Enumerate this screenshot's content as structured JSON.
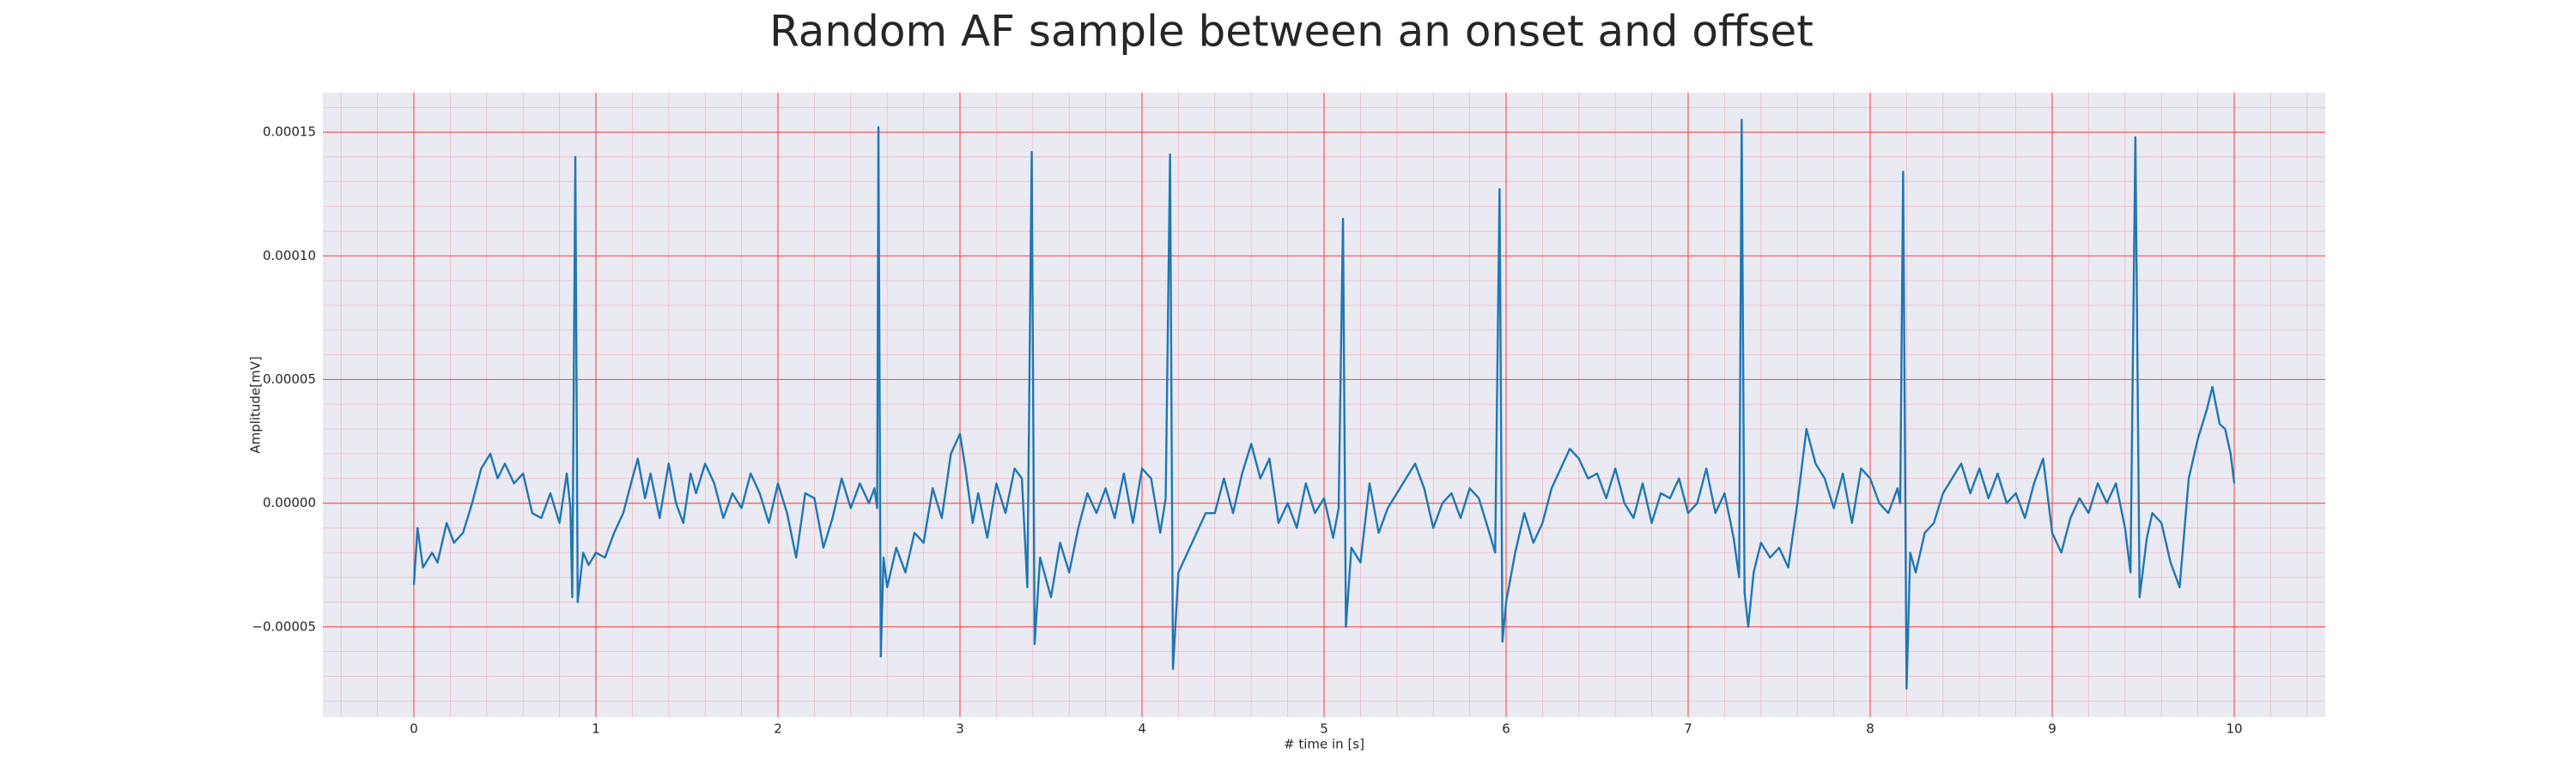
{
  "chart_data": {
    "type": "line",
    "title": "Random AF sample between an onset and offset",
    "x_label": "# time in [s]",
    "y_label": "Amplitude[mV]",
    "color": "#1f77b4",
    "grid": true,
    "minor_grid": true,
    "xlim": [
      -0.5,
      10.5
    ],
    "ylim": [
      -8.65e-05,
      0.000166
    ],
    "xticks": [
      0,
      1,
      2,
      3,
      4,
      5,
      6,
      7,
      8,
      9,
      10
    ],
    "yticks": [
      {
        "value": -5e-05,
        "label": "−0.00005"
      },
      {
        "value": 0,
        "label": "0.00000"
      },
      {
        "value": 5e-05,
        "label": "0.00005"
      },
      {
        "value": 0.0001,
        "label": "0.00010"
      },
      {
        "value": 0.00015,
        "label": "0.00015"
      }
    ],
    "x": [
      0,
      0.02,
      0.05,
      0.1,
      0.13,
      0.18,
      0.22,
      0.27,
      0.32,
      0.37,
      0.42,
      0.46,
      0.5,
      0.55,
      0.6,
      0.65,
      0.7,
      0.75,
      0.8,
      0.84,
      0.86,
      0.87,
      0.887,
      0.9,
      0.93,
      0.96,
      1.0,
      1.05,
      1.1,
      1.15,
      1.2,
      1.23,
      1.27,
      1.3,
      1.35,
      1.4,
      1.44,
      1.48,
      1.52,
      1.55,
      1.6,
      1.65,
      1.7,
      1.75,
      1.8,
      1.85,
      1.9,
      1.95,
      2.0,
      2.05,
      2.1,
      2.15,
      2.2,
      2.25,
      2.3,
      2.35,
      2.4,
      2.45,
      2.5,
      2.53,
      2.545,
      2.552,
      2.565,
      2.58,
      2.6,
      2.65,
      2.7,
      2.75,
      2.8,
      2.85,
      2.9,
      2.95,
      3.0,
      3.03,
      3.07,
      3.1,
      3.15,
      3.2,
      3.25,
      3.3,
      3.34,
      3.37,
      3.394,
      3.41,
      3.44,
      3.5,
      3.55,
      3.6,
      3.65,
      3.7,
      3.75,
      3.8,
      3.85,
      3.9,
      3.95,
      4.0,
      4.05,
      4.1,
      4.13,
      4.154,
      4.17,
      4.2,
      4.25,
      4.3,
      4.35,
      4.4,
      4.45,
      4.5,
      4.55,
      4.6,
      4.65,
      4.7,
      4.75,
      4.8,
      4.85,
      4.9,
      4.95,
      5.0,
      5.05,
      5.08,
      5.104,
      5.12,
      5.15,
      5.2,
      5.25,
      5.3,
      5.35,
      5.4,
      5.45,
      5.5,
      5.55,
      5.6,
      5.65,
      5.7,
      5.75,
      5.8,
      5.85,
      5.9,
      5.94,
      5.964,
      5.98,
      6.0,
      6.05,
      6.1,
      6.15,
      6.2,
      6.25,
      6.3,
      6.35,
      6.4,
      6.45,
      6.5,
      6.55,
      6.6,
      6.65,
      6.7,
      6.75,
      6.8,
      6.85,
      6.9,
      6.95,
      7.0,
      7.05,
      7.1,
      7.15,
      7.2,
      7.25,
      7.28,
      7.294,
      7.31,
      7.33,
      7.36,
      7.4,
      7.45,
      7.5,
      7.55,
      7.6,
      7.65,
      7.7,
      7.75,
      7.8,
      7.85,
      7.9,
      7.95,
      8.0,
      8.05,
      8.1,
      8.15,
      8.165,
      8.181,
      8.2,
      8.22,
      8.25,
      8.3,
      8.35,
      8.4,
      8.45,
      8.5,
      8.55,
      8.6,
      8.65,
      8.7,
      8.75,
      8.8,
      8.85,
      8.9,
      8.95,
      9.0,
      9.05,
      9.1,
      9.15,
      9.2,
      9.25,
      9.3,
      9.35,
      9.4,
      9.43,
      9.457,
      9.48,
      9.52,
      9.55,
      9.6,
      9.65,
      9.7,
      9.75,
      9.8,
      9.85,
      9.88,
      9.92,
      9.95,
      9.98,
      10.0
    ],
    "values": [
      -3.3e-05,
      -1e-05,
      -2.6e-05,
      -2e-05,
      -2.4e-05,
      -8e-06,
      -1.6e-05,
      -1.2e-05,
      0,
      1.4e-05,
      2e-05,
      1e-05,
      1.6e-05,
      8e-06,
      1.2e-05,
      -4e-06,
      -6e-06,
      4e-06,
      -8e-06,
      1.2e-05,
      -2e-06,
      -3.8e-05,
      0.00014,
      -4e-05,
      -2e-05,
      -2.5e-05,
      -2e-05,
      -2.2e-05,
      -1.2e-05,
      -4e-06,
      1e-05,
      1.8e-05,
      2e-06,
      1.2e-05,
      -6e-06,
      1.6e-05,
      0,
      -8e-06,
      1.2e-05,
      4e-06,
      1.6e-05,
      8e-06,
      -6e-06,
      4e-06,
      -2e-06,
      1.2e-05,
      4e-06,
      -8e-06,
      8e-06,
      -4e-06,
      -2.2e-05,
      4e-06,
      2e-06,
      -1.8e-05,
      -6e-06,
      1e-05,
      -2e-06,
      8e-06,
      0,
      6e-06,
      -2e-06,
      0.000152,
      -6.2e-05,
      -2.2e-05,
      -3.4e-05,
      -1.8e-05,
      -2.8e-05,
      -1.2e-05,
      -1.6e-05,
      6e-06,
      -6e-06,
      2e-05,
      2.8e-05,
      1.4e-05,
      -8e-06,
      4e-06,
      -1.4e-05,
      8e-06,
      -4e-06,
      1.4e-05,
      1e-05,
      -3.4e-05,
      0.000142,
      -5.7e-05,
      -2.2e-05,
      -3.8e-05,
      -1.6e-05,
      -2.8e-05,
      -1e-05,
      4e-06,
      -4e-06,
      6e-06,
      -6e-06,
      1.2e-05,
      -8e-06,
      1.4e-05,
      1e-05,
      -1.2e-05,
      2e-06,
      0.000141,
      -6.7e-05,
      -2.8e-05,
      -2e-05,
      -1.2e-05,
      -4e-06,
      -4e-06,
      1e-05,
      -4e-06,
      1.2e-05,
      2.4e-05,
      1e-05,
      1.8e-05,
      -8e-06,
      0,
      -1e-05,
      8e-06,
      -4e-06,
      2e-06,
      -1.4e-05,
      -2e-06,
      0.000115,
      -5e-05,
      -1.8e-05,
      -2.4e-05,
      8e-06,
      -1.2e-05,
      -2e-06,
      4e-06,
      1e-05,
      1.6e-05,
      6e-06,
      -1e-05,
      0,
      4e-06,
      -6e-06,
      6e-06,
      2e-06,
      -1e-05,
      -2e-05,
      0.000127,
      -5.6e-05,
      -4e-05,
      -2e-05,
      -4e-06,
      -1.6e-05,
      -8e-06,
      6e-06,
      1.4e-05,
      2.2e-05,
      1.8e-05,
      1e-05,
      1.2e-05,
      2e-06,
      1.4e-05,
      0,
      -6e-06,
      8e-06,
      -8e-06,
      4e-06,
      2e-06,
      1e-05,
      -4e-06,
      0,
      1.4e-05,
      -4e-06,
      4e-06,
      -1.4e-05,
      -3e-05,
      0.000155,
      -3.6e-05,
      -5e-05,
      -2.8e-05,
      -1.6e-05,
      -2.2e-05,
      -1.8e-05,
      -2.6e-05,
      0,
      3e-05,
      1.6e-05,
      1e-05,
      -2e-06,
      1.2e-05,
      -8e-06,
      1.4e-05,
      1e-05,
      0,
      -4e-06,
      6e-06,
      0,
      0.000134,
      -7.5e-05,
      -2e-05,
      -2.8e-05,
      -1.2e-05,
      -8e-06,
      4e-06,
      1e-05,
      1.6e-05,
      4e-06,
      1.4e-05,
      2e-06,
      1.2e-05,
      0,
      4e-06,
      -6e-06,
      8e-06,
      1.8e-05,
      -1.2e-05,
      -2e-05,
      -6e-06,
      2e-06,
      -4e-06,
      8e-06,
      0,
      8e-06,
      -1e-05,
      -2.8e-05,
      0.000148,
      -3.8e-05,
      -1.4e-05,
      -4e-06,
      -8e-06,
      -2.4e-05,
      -3.4e-05,
      1e-05,
      2.6e-05,
      3.8e-05,
      4.7e-05,
      3.2e-05,
      3e-05,
      2e-05,
      8e-06
    ]
  }
}
